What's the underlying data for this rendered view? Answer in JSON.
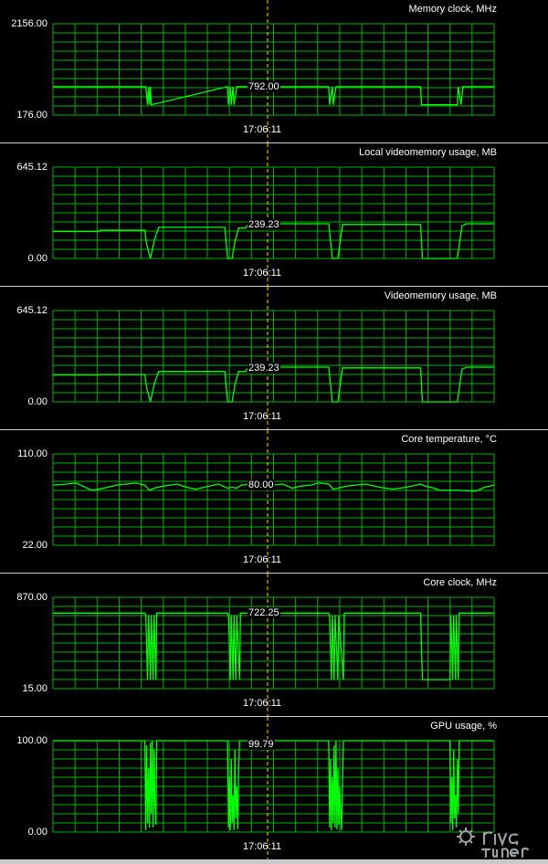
{
  "time_label": "17:06:11",
  "colors": {
    "grid": "#00b400",
    "trace": "#00ff00",
    "cursor": "#ffdd00",
    "background": "#000000",
    "text": "#ffffff"
  },
  "logo_text": "RivaTuner",
  "chart_data": [
    {
      "type": "line",
      "title": "Memory clock, MHz",
      "ylim": [
        176,
        2156
      ],
      "ymax_label": "2156.00",
      "ymin_label": "176.00",
      "cursor_label": "792.00",
      "cursor_value": 792,
      "x": [
        0,
        100,
        101,
        103,
        104,
        105,
        106,
        107,
        190,
        191,
        193,
        194,
        196,
        197,
        200,
        220,
        300,
        301,
        304,
        305,
        308,
        310,
        400,
        401,
        406,
        440,
        441,
        444,
        446,
        480
      ],
      "values": [
        792,
        792,
        792,
        400,
        792,
        400,
        792,
        400,
        792,
        400,
        792,
        400,
        792,
        400,
        792,
        792,
        792,
        400,
        792,
        400,
        792,
        792,
        792,
        400,
        400,
        400,
        792,
        400,
        792,
        792
      ]
    },
    {
      "type": "line",
      "title": "Local videomemory usage, MB",
      "ylim": [
        0,
        645.12
      ],
      "ymax_label": "645.12",
      "ymin_label": "0.00",
      "cursor_label": "239.23",
      "cursor_value": 239.23,
      "x": [
        0,
        50,
        51,
        100,
        102,
        106,
        110,
        115,
        187,
        190,
        195,
        198,
        202,
        210,
        211,
        240,
        241,
        300,
        304,
        310,
        315,
        400,
        402,
        408,
        440,
        445,
        450,
        480
      ],
      "values": [
        190,
        190,
        200,
        200,
        100,
        0,
        120,
        220,
        220,
        0,
        0,
        120,
        215,
        215,
        232,
        232,
        245,
        245,
        0,
        0,
        240,
        240,
        0,
        0,
        0,
        230,
        245,
        245
      ]
    },
    {
      "type": "line",
      "title": "Videomemory usage, MB",
      "ylim": [
        0,
        645.12
      ],
      "ymax_label": "645.12",
      "ymin_label": "0.00",
      "cursor_label": "239.23",
      "cursor_value": 239.23,
      "x": [
        0,
        50,
        51,
        100,
        102,
        106,
        110,
        115,
        187,
        190,
        195,
        198,
        202,
        210,
        211,
        240,
        241,
        300,
        304,
        310,
        315,
        400,
        402,
        408,
        440,
        445,
        450,
        480
      ],
      "values": [
        190,
        190,
        192,
        192,
        100,
        0,
        120,
        215,
        215,
        0,
        0,
        120,
        215,
        215,
        232,
        232,
        245,
        245,
        0,
        0,
        240,
        240,
        0,
        0,
        0,
        230,
        245,
        245
      ]
    },
    {
      "type": "line",
      "title": "Core temperature, °C",
      "ylim": [
        22,
        110
      ],
      "ymax_label": "110.00",
      "ymin_label": "22.00",
      "cursor_label": "80.00",
      "cursor_value": 80,
      "x": [
        0,
        15,
        25,
        35,
        42,
        50,
        70,
        90,
        100,
        105,
        110,
        120,
        135,
        145,
        155,
        170,
        180,
        190,
        195,
        200,
        205,
        215,
        230,
        250,
        260,
        270,
        280,
        290,
        300,
        305,
        310,
        320,
        340,
        355,
        370,
        385,
        400,
        405,
        415,
        420,
        440,
        460,
        470,
        480
      ],
      "values": [
        80,
        81,
        82,
        78,
        75,
        76,
        80,
        82,
        80,
        75,
        77,
        79,
        81,
        78,
        76,
        79,
        81,
        77,
        78,
        77,
        80,
        81,
        79,
        81,
        77,
        79,
        80,
        82,
        81,
        76,
        77,
        79,
        81,
        78,
        76,
        78,
        81,
        79,
        77,
        75,
        75,
        74,
        78,
        80
      ]
    },
    {
      "type": "line",
      "title": "Core clock, MHz",
      "ylim": [
        15,
        870
      ],
      "ymax_label": "870.00",
      "ymin_label": "15.00",
      "cursor_label": "722.25",
      "cursor_value": 722.25,
      "x": [
        0,
        100,
        101,
        103,
        104,
        106,
        107,
        109,
        110,
        112,
        113,
        190,
        191,
        193,
        194,
        196,
        197,
        199,
        200,
        203,
        204,
        300,
        301,
        303,
        304,
        306,
        307,
        310,
        311,
        316,
        317,
        400,
        402,
        432,
        433,
        435,
        436,
        438,
        439,
        441,
        442,
        480
      ],
      "values": [
        722,
        722,
        700,
        100,
        700,
        100,
        700,
        100,
        700,
        100,
        722,
        722,
        700,
        100,
        700,
        100,
        700,
        100,
        700,
        100,
        722,
        722,
        700,
        100,
        700,
        100,
        700,
        100,
        700,
        100,
        722,
        722,
        100,
        100,
        700,
        100,
        700,
        100,
        700,
        100,
        722,
        722
      ]
    },
    {
      "type": "line",
      "title": "GPU usage, %",
      "ylim": [
        0,
        100
      ],
      "ymax_label": "100.00",
      "ymin_label": "0.00",
      "cursor_label": "99.79",
      "cursor_value": 99.79,
      "x": [
        0,
        100,
        101,
        102,
        103,
        104,
        105,
        106,
        107,
        108,
        109,
        110,
        111,
        112,
        113,
        190,
        191,
        192,
        193,
        194,
        195,
        196,
        197,
        198,
        199,
        200,
        201,
        202,
        203,
        204,
        300,
        301,
        302,
        303,
        304,
        305,
        306,
        307,
        308,
        309,
        310,
        311,
        312,
        314,
        316,
        317,
        400,
        432,
        433,
        434,
        435,
        436,
        437,
        438,
        439,
        440,
        441,
        442,
        480
      ],
      "values": [
        100,
        100,
        2,
        95,
        10,
        70,
        5,
        98,
        20,
        100,
        5,
        90,
        30,
        8,
        100,
        100,
        5,
        60,
        2,
        80,
        10,
        40,
        2,
        90,
        15,
        50,
        3,
        70,
        100,
        100,
        100,
        5,
        80,
        2,
        60,
        10,
        95,
        5,
        100,
        3,
        70,
        8,
        50,
        2,
        100,
        100,
        100,
        100,
        10,
        60,
        2,
        90,
        15,
        40,
        5,
        80,
        20,
        100,
        100
      ]
    }
  ]
}
